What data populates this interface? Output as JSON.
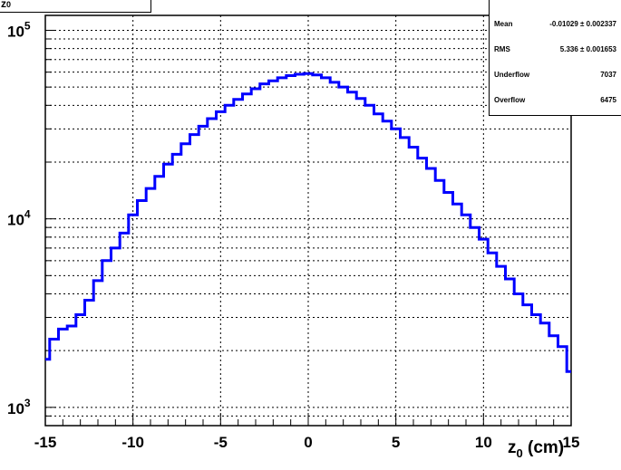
{
  "title": {
    "main": "z",
    "sub": "0"
  },
  "stats": {
    "mean_label": "Mean",
    "mean_value": "-0.01029 ± 0.002337",
    "rms_label": "RMS",
    "rms_value": "5.336 ± 0.001653",
    "underflow_label": "Underflow",
    "underflow_value": "7037",
    "overflow_label": "Overflow",
    "overflow_value": "6475"
  },
  "chart_data": {
    "type": "line",
    "xlabel_main": "z",
    "xlabel_sub": "0",
    "xlabel_unit": " (cm)",
    "xlim": [
      -15,
      15
    ],
    "ylim": [
      800,
      120000
    ],
    "yscale": "log",
    "grid": true,
    "line_color": "#0000ff",
    "x_ticks": [
      "-15",
      "-10",
      "-5",
      "0",
      "5",
      "10",
      "15"
    ],
    "y_ticks": [
      {
        "base": "10",
        "exp": "3",
        "value": 1000
      },
      {
        "base": "10",
        "exp": "4",
        "value": 10000
      },
      {
        "base": "10",
        "exp": "5",
        "value": 100000
      }
    ],
    "series": [
      {
        "x": [
          -15,
          -14.5,
          -14,
          -13.5,
          -13,
          -12.5,
          -12,
          -11.5,
          -11,
          -10.5,
          -10,
          -9.5,
          -9,
          -8.5,
          -8,
          -7.5,
          -7,
          -6.5,
          -6,
          -5.5,
          -5,
          -4.5,
          -4,
          -3.5,
          -3,
          -2.5,
          -2,
          -1.5,
          -1,
          -0.5,
          0,
          0.5,
          1,
          1.5,
          2,
          2.5,
          3,
          3.5,
          4,
          4.5,
          5,
          5.5,
          6,
          6.5,
          7,
          7.5,
          8,
          8.5,
          9,
          9.5,
          10,
          10.5,
          11,
          11.5,
          12,
          12.5,
          13,
          13.5,
          14,
          14.5,
          15
        ],
        "y": [
          1800,
          2300,
          2600,
          2700,
          3100,
          3700,
          4700,
          6000,
          7000,
          8400,
          10500,
          12500,
          14500,
          16800,
          19500,
          22000,
          25000,
          28000,
          31000,
          34000,
          37000,
          40000,
          43000,
          46000,
          49000,
          52000,
          54000,
          56000,
          57500,
          58500,
          59000,
          58000,
          56000,
          53000,
          50000,
          47000,
          43500,
          40000,
          36000,
          33000,
          30000,
          27000,
          24000,
          21000,
          18500,
          16000,
          13800,
          12000,
          10500,
          9000,
          7800,
          6600,
          5600,
          4800,
          4000,
          3500,
          3100,
          2800,
          2400,
          2100,
          1550
        ]
      }
    ]
  }
}
